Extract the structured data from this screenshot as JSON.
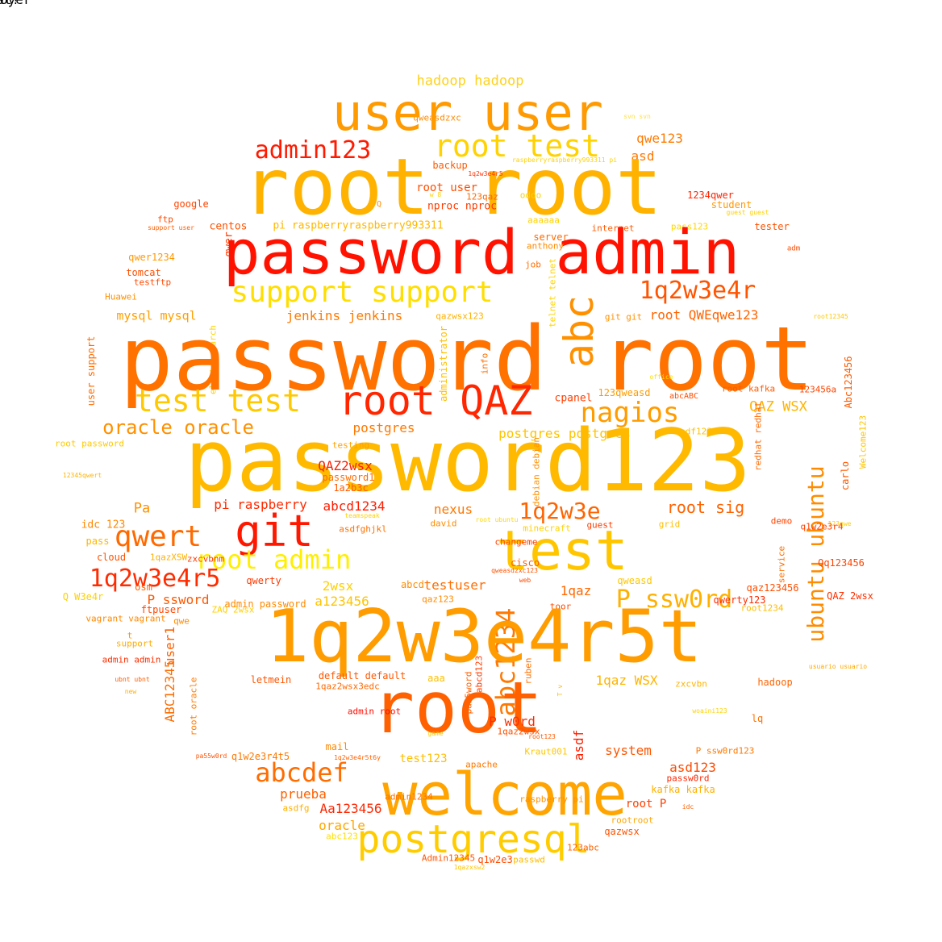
{
  "words": [
    {
      "text": "hadoop hadoop",
      "color": "#ffd21e"
    },
    {
      "text": "qweasdzxc",
      "color": "#ff8a00"
    },
    {
      "text": "svn svn",
      "color": "#ffe14a"
    },
    {
      "text": "user user",
      "color": "#ff9a00"
    },
    {
      "text": "root test",
      "color": "#ffd200"
    },
    {
      "text": "qwe123",
      "color": "#ff7a00"
    },
    {
      "text": "admin123",
      "color": "#ff1a00"
    },
    {
      "text": "asd",
      "color": "#ff7800"
    },
    {
      "text": "root root",
      "color": "#ffb300"
    },
    {
      "text": "backup",
      "color": "#ff5a00"
    },
    {
      "text": "raspberryraspberry993311 pi",
      "color": "#ffd200"
    },
    {
      "text": "1q2w3e4r5",
      "color": "#ff3000"
    },
    {
      "text": "root user",
      "color": "#ff4e00"
    },
    {
      "text": "w 8",
      "color": "#ffd000"
    },
    {
      "text": "123qaz",
      "color": "#ff6800"
    },
    {
      "text": "nproc nproc",
      "color": "#ff3c00"
    },
    {
      "text": "odoo",
      "color": "#ffd200"
    },
    {
      "text": "google",
      "color": "#ff4400"
    },
    {
      "text": "Q",
      "color": "#ff8c00"
    },
    {
      "text": "1234qwer",
      "color": "#ff2400"
    },
    {
      "text": "student",
      "color": "#ff9800"
    },
    {
      "text": "guest guest",
      "color": "#ffd000"
    },
    {
      "text": "ftp",
      "color": "#ff4a00"
    },
    {
      "text": "support user",
      "color": "#ff5c00"
    },
    {
      "text": "centos",
      "color": "#ff5200"
    },
    {
      "text": "qwer",
      "color": "#ff3a00"
    },
    {
      "text": "pi raspberryraspberry993311",
      "color": "#ffb800"
    },
    {
      "text": "aaaaaa",
      "color": "#ffd200"
    },
    {
      "text": "internet",
      "color": "#ff5a00"
    },
    {
      "text": "pass123",
      "color": "#ffd600"
    },
    {
      "text": "tester",
      "color": "#ff5000"
    },
    {
      "text": "password admin",
      "color": "#ff1200"
    },
    {
      "text": "server",
      "color": "#ff6a00"
    },
    {
      "text": "anthony",
      "color": "#ff8a00"
    },
    {
      "text": "adm",
      "color": "#ff4a00"
    },
    {
      "text": "qwer1234",
      "color": "#ff9800"
    },
    {
      "text": "tomcat",
      "color": "#ff5000"
    },
    {
      "text": "testftp",
      "color": "#ff4800"
    },
    {
      "text": "job",
      "color": "#ff6c00"
    },
    {
      "text": "support support",
      "color": "#ffde00"
    },
    {
      "text": "1q2w3e4r",
      "color": "#ff5400"
    },
    {
      "text": "Huawei",
      "color": "#ff9000"
    },
    {
      "text": "telnet telnet",
      "color": "#ffd400"
    },
    {
      "text": "mysql mysql",
      "color": "#ffa000"
    },
    {
      "text": "jenkins jenkins",
      "color": "#ff7a00"
    },
    {
      "text": "qazwsx123",
      "color": "#ffb000"
    },
    {
      "text": "root QWEqwe123",
      "color": "#ff6400"
    },
    {
      "text": "git git",
      "color": "#ff9000"
    },
    {
      "text": "root12345",
      "color": "#ffc800"
    },
    {
      "text": "elasticsearch",
      "color": "#ffd400"
    },
    {
      "text": "administrator",
      "color": "#ffc000"
    },
    {
      "text": "password root",
      "color": "#ff7200"
    },
    {
      "text": "abc",
      "color": "#ff9000"
    },
    {
      "text": "user support",
      "color": "#ff6c00"
    },
    {
      "text": "info",
      "color": "#ff7000"
    },
    {
      "text": "Abc123456",
      "color": "#ff5a00"
    },
    {
      "text": "office",
      "color": "#ffde00"
    },
    {
      "text": "test test",
      "color": "#ffc800"
    },
    {
      "text": "root QAZ",
      "color": "#ff2600"
    },
    {
      "text": "cpanel",
      "color": "#ff3e00"
    },
    {
      "text": "123qweasd",
      "color": "#ff9c00"
    },
    {
      "text": "root kafka",
      "color": "#ff5a00"
    },
    {
      "text": "123456a",
      "color": "#ff4400"
    },
    {
      "text": "abcABC",
      "color": "#ff4e00"
    },
    {
      "text": "Welcome123",
      "color": "#ffc400"
    },
    {
      "text": "nagios",
      "color": "#ff9c00"
    },
    {
      "text": "QAZ WSX",
      "color": "#ffb400"
    },
    {
      "text": "oracle oracle",
      "color": "#ff9000"
    },
    {
      "text": "postgres",
      "color": "#ff7800"
    },
    {
      "text": "postgres postgres",
      "color": "#ffc400"
    },
    {
      "text": "redhat redhat",
      "color": "#ff6a00"
    },
    {
      "text": "asdf1234",
      "color": "#ffc000"
    },
    {
      "text": "carlo",
      "color": "#ff5800"
    },
    {
      "text": "password123",
      "color": "#ffba00"
    },
    {
      "text": "root password",
      "color": "#ffca00"
    },
    {
      "text": "testing",
      "color": "#ffa000"
    },
    {
      "text": "QAZ2wsx",
      "color": "#ff1e00"
    },
    {
      "text": "password1",
      "color": "#ff6a00"
    },
    {
      "text": "debian debian",
      "color": "#ff9000"
    },
    {
      "text": "1a2b3c",
      "color": "#ff5a00"
    },
    {
      "text": "12345qwert",
      "color": "#ffb400"
    },
    {
      "text": "Pa",
      "color": "#ff9000"
    },
    {
      "text": "pi raspberry",
      "color": "#ff2a00"
    },
    {
      "text": "abcd1234",
      "color": "#ff1c00"
    },
    {
      "text": "nexus",
      "color": "#ff7800"
    },
    {
      "text": "1q2w3e",
      "color": "#ff6400"
    },
    {
      "text": "root sig",
      "color": "#ff6200"
    },
    {
      "text": "ubuntu ubuntu",
      "color": "#ff8c00"
    },
    {
      "text": "123qwe",
      "color": "#ffcc00"
    },
    {
      "text": "idc 123",
      "color": "#ff8800"
    },
    {
      "text": "teamspeak",
      "color": "#ffd200"
    },
    {
      "text": "root ubuntu",
      "color": "#ffd800"
    },
    {
      "text": "asdfghjkl",
      "color": "#ff7000"
    },
    {
      "text": "david",
      "color": "#ff8c00"
    },
    {
      "text": "minecraft",
      "color": "#ffd200"
    },
    {
      "text": "guest",
      "color": "#ff3c00"
    },
    {
      "text": "grid",
      "color": "#ffbe00"
    },
    {
      "text": "demo",
      "color": "#ff4400"
    },
    {
      "text": "q1w2e3r4",
      "color": "#ff4000"
    },
    {
      "text": "qwert",
      "color": "#ff6a00"
    },
    {
      "text": "git",
      "color": "#ff1800"
    },
    {
      "text": "test",
      "color": "#ffc600"
    },
    {
      "text": "root admin",
      "color": "#ffef00"
    },
    {
      "text": "pass",
      "color": "#ffb600"
    },
    {
      "text": "1qazXSW",
      "color": "#ffb000"
    },
    {
      "text": "cloud",
      "color": "#ff5200"
    },
    {
      "text": "zxcvbnm",
      "color": "#ff3800"
    },
    {
      "text": "changeme",
      "color": "#ff4200"
    },
    {
      "text": "cisco",
      "color": "#ff5c00"
    },
    {
      "text": "qweasdzxc123",
      "color": "#ff5200"
    },
    {
      "text": "service",
      "color": "#ff7000"
    },
    {
      "text": "Qq123456",
      "color": "#ff4400"
    },
    {
      "text": "1q2w3e4r5",
      "color": "#ff2c00"
    },
    {
      "text": "osm",
      "color": "#ff6200"
    },
    {
      "text": "qwerty",
      "color": "#ff3800"
    },
    {
      "text": "web",
      "color": "#ff4800"
    },
    {
      "text": "qweasd",
      "color": "#ffc800"
    },
    {
      "text": "qaz123456",
      "color": "#ff4e00"
    },
    {
      "text": "Q W3e4r",
      "color": "#ffd000"
    },
    {
      "text": "P ssword",
      "color": "#ff5800"
    },
    {
      "text": "2wsx",
      "color": "#ffd000"
    },
    {
      "text": "testuser",
      "color": "#ff6e00"
    },
    {
      "text": "abc1234",
      "color": "#ff7800"
    },
    {
      "text": "1qaz",
      "color": "#ff6800"
    },
    {
      "text": "P ssw0rd",
      "color": "#ffb000"
    },
    {
      "text": "QAZ 2wsx",
      "color": "#ff3000"
    },
    {
      "text": "abcd.",
      "color": "#ff8c00"
    },
    {
      "text": "a123456",
      "color": "#ffc400"
    },
    {
      "text": "ftpuser",
      "color": "#ff4600"
    },
    {
      "text": "ZAQ 2wsx",
      "color": "#ffd000"
    },
    {
      "text": "admin password",
      "color": "#ff8a00"
    },
    {
      "text": "qaz123",
      "color": "#ff8a00"
    },
    {
      "text": "toor",
      "color": "#ff4a00"
    },
    {
      "text": "qwerty123",
      "color": "#ff2a00"
    },
    {
      "text": "root1234",
      "color": "#ffbc00"
    },
    {
      "text": "vagrant vagrant",
      "color": "#ff8800"
    },
    {
      "text": "qwe",
      "color": "#ff8a00"
    },
    {
      "text": "user1",
      "color": "#ff6000"
    },
    {
      "text": "1q2w3e4r5t",
      "color": "#ff9c00"
    },
    {
      "text": "t",
      "color": "#ff9000"
    },
    {
      "text": "support",
      "color": "#ffac00"
    },
    {
      "text": "admin admin",
      "color": "#ff2e00"
    },
    {
      "text": "abcd123",
      "color": "#ff3c00"
    },
    {
      "text": "pa55word",
      "color": "#ff6000"
    },
    {
      "text": "ruben",
      "color": "#ff7000"
    },
    {
      "text": "usuario usuario",
      "color": "#ffa800"
    },
    {
      "text": "letmein",
      "color": "#ff5400"
    },
    {
      "text": "default default",
      "color": "#ff5800"
    },
    {
      "text": "aaa",
      "color": "#ffc000"
    },
    {
      "text": "1qaz WSX",
      "color": "#ffb400"
    },
    {
      "text": "zxcvbn",
      "color": "#ffb400"
    },
    {
      "text": "hadoop",
      "color": "#ff6400"
    },
    {
      "text": "ubnt ubnt",
      "color": "#ff5c00"
    },
    {
      "text": "ABC12345",
      "color": "#ff6c00"
    },
    {
      "text": "1qaz2wsx3edc",
      "color": "#ff6800"
    },
    {
      "text": "new",
      "color": "#ffb000"
    },
    {
      "text": "root",
      "color": "#ff6000"
    },
    {
      "text": "root oracle",
      "color": "#ff7a00"
    },
    {
      "text": "abcdef",
      "color": "#ff6c00"
    },
    {
      "text": "admin root",
      "color": "#ff0a00"
    },
    {
      "text": "P w0rd",
      "color": "#ff2e00"
    },
    {
      "text": "1qaz2wsx",
      "color": "#ff5200"
    },
    {
      "text": "game",
      "color": "#ffc800"
    },
    {
      "text": "root123",
      "color": "#ff5800"
    },
    {
      "text": "woaini123",
      "color": "#ffd200"
    },
    {
      "text": "lq",
      "color": "#ff7000"
    },
    {
      "text": "T v",
      "color": "#ffba00"
    },
    {
      "text": "mail",
      "color": "#ff8800"
    },
    {
      "text": "pa55w0rd",
      "color": "#ff5200"
    },
    {
      "text": "q1w2e3r4t5",
      "color": "#ff7800"
    },
    {
      "text": "1q2w3e4r5t6y",
      "color": "#ff6000"
    },
    {
      "text": "system",
      "color": "#ff5600"
    },
    {
      "text": "Kraut001",
      "color": "#ffc800"
    },
    {
      "text": "P ssw0rd123",
      "color": "#ff7800"
    },
    {
      "text": "test123",
      "color": "#ffbe00"
    },
    {
      "text": "apache",
      "color": "#ff7800"
    },
    {
      "text": "asd123",
      "color": "#ff4a00"
    },
    {
      "text": "passw0rd",
      "color": "#ff2400"
    },
    {
      "text": "asdf",
      "color": "#ff1e00"
    },
    {
      "text": "welcome",
      "color": "#ffa400"
    },
    {
      "text": "prueba",
      "color": "#ff6000"
    },
    {
      "text": "kafka kafka",
      "color": "#ffb000"
    },
    {
      "text": "root P",
      "color": "#ff4000"
    },
    {
      "text": "admin1234",
      "color": "#ff7000"
    },
    {
      "text": "raspberry pi",
      "color": "#ff9000"
    },
    {
      "text": "Aa123456",
      "color": "#ff2600"
    },
    {
      "text": "idc",
      "color": "#ff6000"
    },
    {
      "text": "asdfg",
      "color": "#ffb000"
    },
    {
      "text": "oracle",
      "color": "#ffa600"
    },
    {
      "text": "postgresql",
      "color": "#ffcc00"
    },
    {
      "text": "rootroot",
      "color": "#ffa600"
    },
    {
      "text": "qazwsx",
      "color": "#ff5200"
    },
    {
      "text": "abc123",
      "color": "#ffe000"
    },
    {
      "text": "123abc",
      "color": "#ff6000"
    },
    {
      "text": "Admin12345",
      "color": "#ff5400"
    },
    {
      "text": "q1w2e3",
      "color": "#ff4a00"
    },
    {
      "text": "passwd",
      "color": "#ffbc00"
    },
    {
      "text": "1qazxsw2",
      "color": "#ffc400"
    },
    {
      "text": "deployer",
      "color": "#ff5c00"
    },
    {
      "text": "X",
      "color": "#ffd000"
    },
    {
      "text": "root!",
      "color": "#ff8000"
    }
  ]
}
